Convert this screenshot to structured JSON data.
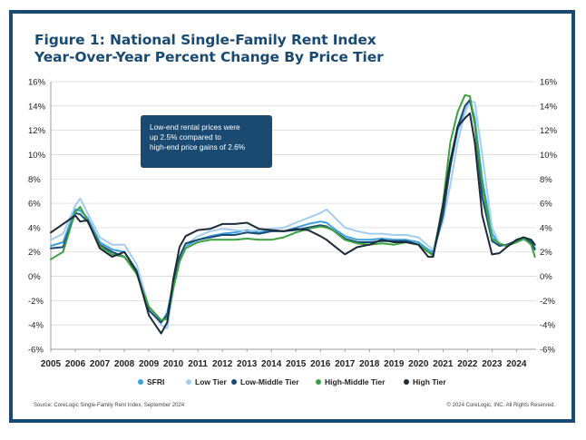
{
  "chart_data": {
    "type": "line",
    "title_lines": [
      "Figure 1: National Single-Family Rent Index",
      "Year-Over-Year Percent Change By Price Tier"
    ],
    "ylim": [
      -6,
      16
    ],
    "y_ticks": [
      16,
      14,
      12,
      10,
      8,
      6,
      4,
      2,
      0,
      -2,
      -4,
      -6
    ],
    "y_tick_labels": [
      "16%",
      "14%",
      "12%",
      "10%",
      "8%",
      "6%",
      "4%",
      "2%",
      "0%",
      "-2%",
      "-4%",
      "-6%"
    ],
    "x_range": [
      2005,
      2024.8
    ],
    "x_ticks": [
      2005,
      2006,
      2007,
      2008,
      2009,
      2010,
      2011,
      2012,
      2013,
      2014,
      2015,
      2016,
      2017,
      2018,
      2019,
      2020,
      2021,
      2022,
      2023,
      2024
    ],
    "x_tick_labels": [
      "2005",
      "2006",
      "2007",
      "2008",
      "2009",
      "2010",
      "2011",
      "2012",
      "2013",
      "2014",
      "2015",
      "2016",
      "2017",
      "2018",
      "2019",
      "2020",
      "2021",
      "2022",
      "2023",
      "2024"
    ],
    "grid": true,
    "legend_position": "bottom",
    "annotation": [
      "Low-end rental prices were",
      "up 2.5% compared to",
      "high-end price gains of 2.6%"
    ],
    "x": [
      2005.0,
      2005.5,
      2006.0,
      2006.2,
      2006.5,
      2007.0,
      2007.5,
      2008.0,
      2008.5,
      2009.0,
      2009.5,
      2009.75,
      2010.0,
      2010.25,
      2010.5,
      2011.0,
      2011.5,
      2012.0,
      2012.5,
      2013.0,
      2013.5,
      2014.0,
      2014.5,
      2015.0,
      2015.5,
      2016.0,
      2016.25,
      2016.5,
      2017.0,
      2017.5,
      2018.0,
      2018.5,
      2019.0,
      2019.5,
      2020.0,
      2020.4,
      2020.6,
      2021.0,
      2021.3,
      2021.6,
      2021.9,
      2022.1,
      2022.3,
      2022.6,
      2023.0,
      2023.3,
      2023.6,
      2024.0,
      2024.3,
      2024.6,
      2024.75
    ],
    "series": [
      {
        "name": "SFRI",
        "color": "#3aa0e0",
        "values": [
          2.5,
          2.8,
          5.5,
          5.4,
          4.8,
          2.8,
          2.2,
          2.0,
          0.5,
          -2.5,
          -3.8,
          -3.0,
          -0.5,
          1.5,
          2.5,
          3.0,
          3.3,
          3.5,
          3.6,
          3.8,
          3.6,
          3.8,
          3.7,
          4.0,
          4.3,
          4.5,
          4.4,
          4.0,
          3.3,
          3.0,
          3.0,
          3.1,
          3.0,
          3.0,
          2.8,
          2.2,
          2.0,
          5.5,
          9.0,
          12.0,
          13.5,
          14.5,
          13.0,
          8.0,
          3.5,
          2.6,
          2.5,
          3.0,
          3.2,
          2.9,
          2.3
        ]
      },
      {
        "name": "Low Tier",
        "color": "#a4cdf0",
        "values": [
          3.0,
          3.5,
          5.8,
          6.4,
          5.2,
          3.2,
          2.6,
          2.6,
          1.0,
          -2.5,
          -4.0,
          -4.3,
          -1.0,
          1.2,
          2.6,
          3.3,
          3.7,
          3.9,
          3.8,
          3.7,
          3.8,
          3.9,
          4.0,
          4.4,
          4.8,
          5.2,
          5.5,
          5.0,
          4.0,
          3.7,
          3.5,
          3.5,
          3.4,
          3.4,
          3.2,
          2.5,
          2.2,
          4.5,
          7.5,
          11.0,
          13.5,
          14.4,
          14.3,
          10.0,
          4.0,
          2.7,
          2.5,
          2.8,
          3.0,
          2.8,
          2.5
        ]
      },
      {
        "name": "Low-Middle Tier",
        "color": "#1a4a72",
        "values": [
          2.3,
          2.4,
          5.2,
          5.1,
          4.5,
          2.6,
          2.0,
          1.6,
          0.3,
          -2.8,
          -3.8,
          -3.2,
          -0.8,
          1.6,
          2.7,
          3.0,
          3.2,
          3.4,
          3.4,
          3.6,
          3.5,
          3.7,
          3.7,
          3.8,
          4.0,
          4.2,
          4.1,
          3.8,
          3.1,
          2.8,
          2.8,
          2.9,
          2.9,
          2.9,
          2.6,
          2.0,
          1.8,
          5.0,
          9.0,
          12.3,
          14.0,
          14.5,
          12.5,
          6.5,
          2.9,
          2.5,
          2.6,
          2.9,
          3.1,
          2.8,
          2.2
        ]
      },
      {
        "name": "High-Middle Tier",
        "color": "#3aa040",
        "values": [
          1.4,
          2.0,
          5.3,
          5.7,
          4.6,
          2.5,
          1.8,
          1.6,
          0.2,
          -2.5,
          -3.6,
          -3.5,
          -1.0,
          1.2,
          2.3,
          2.8,
          3.0,
          3.0,
          3.0,
          3.1,
          3.0,
          3.0,
          3.2,
          3.6,
          3.9,
          4.1,
          4.0,
          3.8,
          3.0,
          2.7,
          2.6,
          2.7,
          2.6,
          2.8,
          2.6,
          2.0,
          1.7,
          6.0,
          11.0,
          13.5,
          14.9,
          14.8,
          12.5,
          7.5,
          3.1,
          2.7,
          2.5,
          2.8,
          3.1,
          2.6,
          1.6
        ]
      },
      {
        "name": "High Tier",
        "color": "#1c2a3a",
        "values": [
          3.6,
          4.3,
          5.0,
          4.5,
          4.6,
          2.3,
          1.6,
          2.0,
          0.4,
          -3.2,
          -4.7,
          -3.8,
          -0.2,
          2.4,
          3.3,
          3.8,
          3.9,
          4.3,
          4.3,
          4.4,
          3.9,
          3.8,
          3.7,
          3.9,
          3.8,
          3.3,
          3.0,
          2.6,
          1.8,
          2.4,
          2.6,
          3.0,
          2.8,
          2.8,
          2.6,
          1.6,
          1.6,
          5.8,
          9.5,
          12.3,
          13.0,
          13.4,
          11.0,
          5.0,
          1.8,
          1.9,
          2.4,
          3.0,
          3.2,
          3.0,
          2.6
        ]
      }
    ]
  },
  "footer": {
    "source": "Source: CoreLogic Single-Family Rent Index, September 2024",
    "copyright": "© 2024 CoreLogic, INC. All Rights Reserved."
  }
}
